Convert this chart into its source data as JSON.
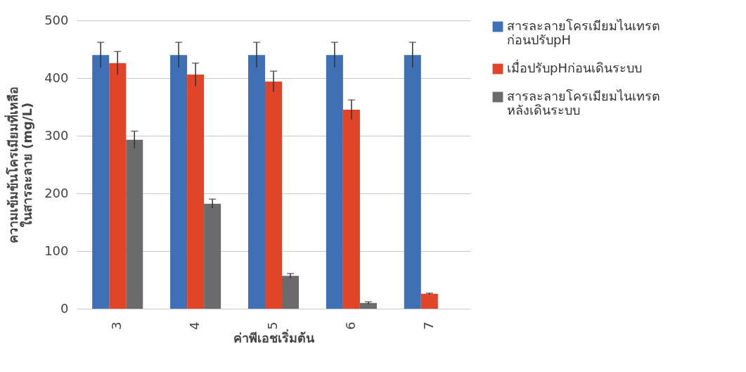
{
  "chart_data": {
    "type": "bar",
    "xlabel": "ค่าพีเอชเริ่มต้น",
    "ylabel": "ความเข้มข้นโครเมียมที่เหลือ\nในสารละลาย (mg/L)",
    "categories": [
      "3",
      "4",
      "5",
      "6",
      "7"
    ],
    "series": [
      {
        "name": "สารละลายโครเมียมไนเทรต\nก่อนปรับpH",
        "color": "#3f6fb5",
        "values": [
          440,
          440,
          440,
          440,
          440
        ],
        "errors": [
          22,
          22,
          22,
          22,
          22
        ]
      },
      {
        "name": "เมื่อปรับpHก่อนเดินระบบ",
        "color": "#e0452a",
        "values": [
          426,
          406,
          394,
          345,
          26
        ],
        "errors": [
          20,
          20,
          18,
          17,
          1
        ]
      },
      {
        "name": "สารละลายโครเมียมไนเทรต\nหลังเดินระบบ",
        "color": "#6b6b6b",
        "values": [
          293,
          182,
          57,
          10,
          null
        ],
        "errors": [
          15,
          8,
          4,
          2,
          null
        ]
      }
    ],
    "ylim": [
      0,
      500
    ],
    "yticks": [
      0,
      100,
      200,
      300,
      400,
      500
    ],
    "grid": "y",
    "legend": "right"
  }
}
